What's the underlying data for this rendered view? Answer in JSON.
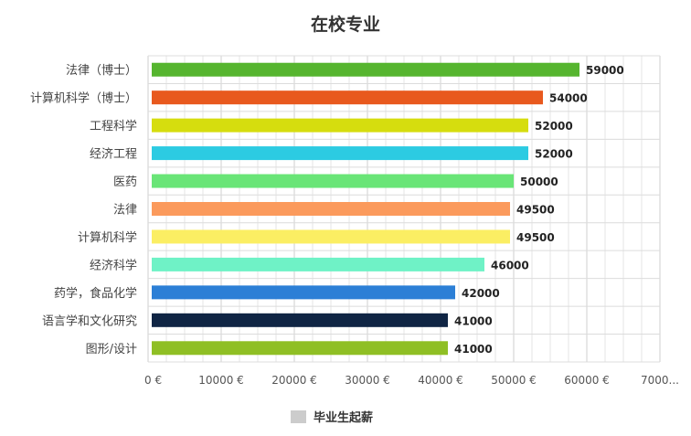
{
  "chart_data": {
    "type": "bar",
    "orientation": "horizontal",
    "title": "在校专业",
    "categories": [
      "法律（博士）",
      "计算机科学（博士）",
      "工程科学",
      "经济工程",
      "医药",
      "法律",
      "计算机科学",
      "经济科学",
      "药学，食品化学",
      "语言学和文化研究",
      "图形/设计"
    ],
    "series": [
      {
        "name": "毕业生起薪",
        "values": [
          59000,
          54000,
          52000,
          52000,
          50000,
          49500,
          49500,
          46000,
          42000,
          41000,
          41000
        ]
      }
    ],
    "bar_colors": [
      "#56b52f",
      "#e8591e",
      "#d6dd0e",
      "#2ccbe2",
      "#69e577",
      "#fb9a5c",
      "#fbee63",
      "#6ff2c6",
      "#2c7fd6",
      "#102544",
      "#8fbf24"
    ],
    "x_ticks": [
      "0 €",
      "10000 €",
      "20000 €",
      "30000 €",
      "40000 €",
      "50000 €",
      "60000 €",
      "7000..."
    ],
    "xlim": [
      0,
      70000
    ],
    "grid": true,
    "legend": {
      "position": "bottom",
      "swatch_color": "#cccccc",
      "label": "毕业生起薪"
    }
  }
}
